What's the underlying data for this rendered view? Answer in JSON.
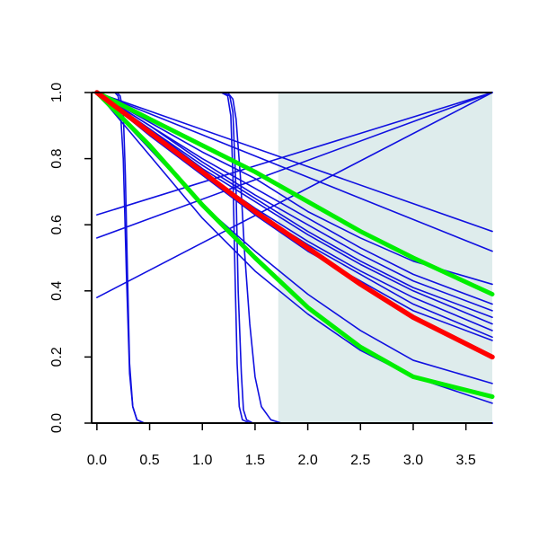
{
  "chart_data": {
    "type": "line",
    "title": "",
    "xlabel": "",
    "ylabel": "",
    "xlim": [
      -0.05,
      3.75
    ],
    "ylim": [
      0.0,
      1.0
    ],
    "x_ticks": [
      0.0,
      0.5,
      1.0,
      1.5,
      2.0,
      2.5,
      3.0,
      3.5
    ],
    "x_tick_labels": [
      "0.0",
      "0.5",
      "1.0",
      "1.5",
      "2.0",
      "2.5",
      "3.0",
      "3.5"
    ],
    "y_ticks": [
      0.0,
      0.2,
      0.4,
      0.6,
      0.8,
      1.0
    ],
    "y_tick_labels": [
      "0.0",
      "0.2",
      "0.4",
      "0.6",
      "0.8",
      "1.0"
    ],
    "grid": false,
    "shaded_region": {
      "x_start": 1.72,
      "x_end": 3.75,
      "color": "#deecec"
    },
    "colors": {
      "thin": "#1010e0",
      "highlight": "#ff0000",
      "band": "#00ee00",
      "axis": "#000000"
    },
    "series": [
      {
        "style": "thin",
        "x": [
          0,
          3.75
        ],
        "y": [
          0.63,
          1.0
        ]
      },
      {
        "style": "thin",
        "x": [
          0,
          3.75
        ],
        "y": [
          0.56,
          1.0
        ]
      },
      {
        "style": "thin",
        "x": [
          0,
          3.75
        ],
        "y": [
          0.38,
          1.0
        ]
      },
      {
        "style": "thin",
        "x": [
          0,
          3.75
        ],
        "y": [
          1.0,
          0.58
        ]
      },
      {
        "style": "thin",
        "x": [
          0,
          3.75
        ],
        "y": [
          1.0,
          0.52
        ]
      },
      {
        "style": "thin",
        "x": [
          0,
          0.5,
          1.0,
          1.5,
          2.0,
          2.5,
          3.0,
          3.75
        ],
        "y": [
          1.0,
          0.91,
          0.82,
          0.74,
          0.64,
          0.56,
          0.49,
          0.42
        ]
      },
      {
        "style": "thin",
        "x": [
          0,
          0.5,
          1.0,
          1.5,
          2.0,
          2.5,
          3.0,
          3.75
        ],
        "y": [
          1.0,
          0.9,
          0.8,
          0.71,
          0.62,
          0.53,
          0.45,
          0.36
        ]
      },
      {
        "style": "thin",
        "x": [
          0,
          0.5,
          1.0,
          1.5,
          2.0,
          2.5,
          3.0,
          3.75
        ],
        "y": [
          1.0,
          0.9,
          0.79,
          0.69,
          0.6,
          0.51,
          0.43,
          0.34
        ]
      },
      {
        "style": "thin",
        "x": [
          0,
          0.5,
          1.0,
          1.5,
          2.0,
          2.5,
          3.0,
          3.75
        ],
        "y": [
          1.0,
          0.89,
          0.78,
          0.68,
          0.58,
          0.49,
          0.41,
          0.32
        ]
      },
      {
        "style": "thin",
        "x": [
          0,
          0.5,
          1.0,
          1.5,
          2.0,
          2.5,
          3.0,
          3.75
        ],
        "y": [
          1.0,
          0.89,
          0.77,
          0.67,
          0.57,
          0.48,
          0.4,
          0.3
        ]
      },
      {
        "style": "thin",
        "x": [
          0,
          0.5,
          1.0,
          1.5,
          2.0,
          2.5,
          3.0,
          3.75
        ],
        "y": [
          1.0,
          0.88,
          0.76,
          0.65,
          0.55,
          0.46,
          0.38,
          0.28
        ]
      },
      {
        "style": "thin",
        "x": [
          0,
          0.5,
          1.0,
          1.5,
          2.0,
          2.5,
          3.0,
          3.75
        ],
        "y": [
          1.0,
          0.88,
          0.76,
          0.64,
          0.54,
          0.45,
          0.36,
          0.26
        ]
      },
      {
        "style": "thin",
        "x": [
          0,
          0.5,
          1.0,
          1.5,
          2.0,
          2.5,
          3.0,
          3.75
        ],
        "y": [
          1.0,
          0.87,
          0.75,
          0.63,
          0.52,
          0.43,
          0.34,
          0.25
        ]
      },
      {
        "style": "thin",
        "x": [
          0,
          0.5,
          1.0,
          1.5,
          2.0,
          2.5,
          3.0,
          3.75
        ],
        "y": [
          1.0,
          0.83,
          0.66,
          0.52,
          0.39,
          0.28,
          0.19,
          0.12
        ]
      },
      {
        "style": "thin",
        "x": [
          0,
          0.5,
          1.0,
          1.5,
          2.0,
          2.5,
          3.0,
          3.75
        ],
        "y": [
          1.0,
          0.81,
          0.62,
          0.46,
          0.33,
          0.22,
          0.14,
          0.06
        ]
      },
      {
        "style": "thin",
        "x": [
          0,
          0.17,
          0.2,
          0.22,
          0.25,
          0.28,
          0.31,
          0.34,
          0.38,
          0.45,
          3.75
        ],
        "y": [
          1.0,
          1.0,
          0.99,
          0.96,
          0.8,
          0.45,
          0.15,
          0.05,
          0.01,
          0.0,
          0.0
        ]
      },
      {
        "style": "thin",
        "x": [
          0,
          0.19,
          0.22,
          0.25,
          0.27,
          0.29,
          0.31,
          0.34,
          0.38,
          0.45,
          3.75
        ],
        "y": [
          1.0,
          1.0,
          0.99,
          0.94,
          0.75,
          0.45,
          0.18,
          0.05,
          0.01,
          0.0,
          0.0
        ]
      },
      {
        "style": "thin",
        "x": [
          0,
          1.18,
          1.24,
          1.27,
          1.29,
          1.31,
          1.33,
          1.35,
          1.38,
          1.45,
          3.75
        ],
        "y": [
          1.0,
          1.0,
          0.99,
          0.93,
          0.75,
          0.45,
          0.18,
          0.05,
          0.01,
          0.0,
          0.0
        ]
      },
      {
        "style": "thin",
        "x": [
          0,
          1.2,
          1.26,
          1.29,
          1.32,
          1.34,
          1.37,
          1.39,
          1.42,
          1.48,
          3.75
        ],
        "y": [
          1.0,
          1.0,
          0.99,
          0.94,
          0.7,
          0.4,
          0.15,
          0.04,
          0.01,
          0.0,
          0.0
        ]
      },
      {
        "style": "thin",
        "x": [
          0,
          1.24,
          1.29,
          1.32,
          1.36,
          1.4,
          1.45,
          1.5,
          1.56,
          1.65,
          1.75,
          3.75
        ],
        "y": [
          1.0,
          1.0,
          0.98,
          0.92,
          0.75,
          0.52,
          0.3,
          0.14,
          0.05,
          0.01,
          0.0,
          0.0
        ]
      },
      {
        "style": "band",
        "x": [
          0,
          0.5,
          1.0,
          1.5,
          2.0,
          2.5,
          3.0,
          3.75
        ],
        "y": [
          1.0,
          0.92,
          0.84,
          0.76,
          0.67,
          0.58,
          0.5,
          0.39
        ]
      },
      {
        "style": "band",
        "x": [
          0,
          0.5,
          1.0,
          1.5,
          2.0,
          2.5,
          3.0,
          3.75
        ],
        "y": [
          1.0,
          0.84,
          0.66,
          0.5,
          0.35,
          0.23,
          0.14,
          0.08
        ]
      },
      {
        "style": "highlight",
        "x": [
          0,
          0.5,
          1.0,
          1.5,
          2.0,
          2.5,
          3.0,
          3.75
        ],
        "y": [
          1.0,
          0.88,
          0.76,
          0.64,
          0.53,
          0.42,
          0.32,
          0.2
        ]
      }
    ]
  }
}
